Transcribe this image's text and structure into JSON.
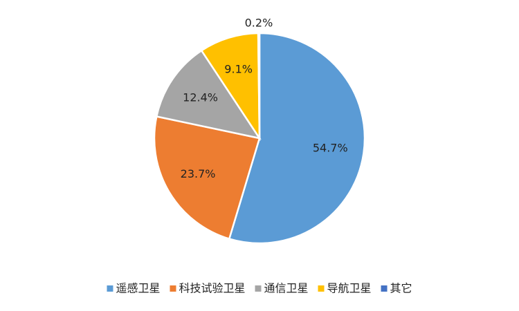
{
  "chart_data": {
    "type": "pie",
    "categories": [
      "遥感卫星",
      "科技试验卫星",
      "通信卫星",
      "导航卫星",
      "其它"
    ],
    "values": [
      54.7,
      23.7,
      12.4,
      9.1,
      0.2
    ],
    "value_labels": [
      "54.7%",
      "23.7%",
      "12.4%",
      "9.1%",
      "0.2%"
    ],
    "colors": [
      "#5b9bd5",
      "#ed7d31",
      "#a5a5a5",
      "#ffc000",
      "#4472c4"
    ],
    "legend": "bottom"
  }
}
